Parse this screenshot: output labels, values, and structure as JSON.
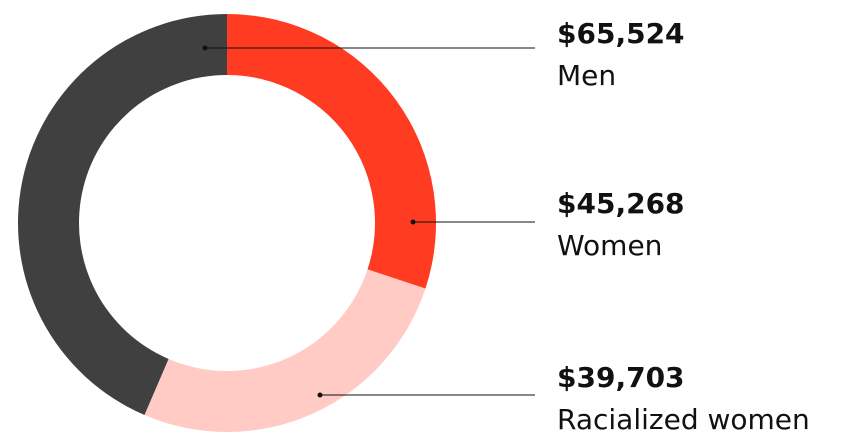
{
  "chart_data": {
    "type": "donut",
    "categories": [
      "Men",
      "Women",
      "Racialized women"
    ],
    "values": [
      65524,
      45268,
      39703
    ],
    "value_labels": [
      "$65,524",
      "$45,268",
      "$39,703"
    ],
    "colors": [
      "#404040",
      "#ff3b22",
      "#ffcbc4"
    ]
  }
}
